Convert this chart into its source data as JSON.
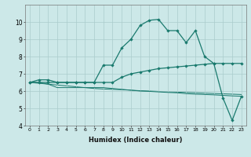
{
  "xlabel": "Humidex (Indice chaleur)",
  "x_values": [
    0,
    1,
    2,
    3,
    4,
    5,
    6,
    7,
    8,
    9,
    10,
    11,
    12,
    13,
    14,
    15,
    16,
    17,
    18,
    19,
    20,
    21,
    22,
    23
  ],
  "line1": [
    6.5,
    6.65,
    6.65,
    6.5,
    6.5,
    6.5,
    6.5,
    6.5,
    7.5,
    7.5,
    8.5,
    9.0,
    9.8,
    10.1,
    10.15,
    9.5,
    9.5,
    8.8,
    9.5,
    8.0,
    7.6,
    5.6,
    4.3,
    5.7
  ],
  "line2": [
    6.5,
    6.5,
    6.5,
    6.5,
    6.5,
    6.5,
    6.5,
    6.5,
    6.5,
    6.5,
    6.8,
    7.0,
    7.1,
    7.2,
    7.3,
    7.35,
    7.4,
    7.45,
    7.5,
    7.55,
    7.6,
    7.6,
    7.6,
    7.6
  ],
  "line3": [
    6.5,
    6.5,
    6.4,
    6.2,
    6.2,
    6.2,
    6.2,
    6.2,
    6.2,
    6.15,
    6.1,
    6.05,
    6.0,
    5.98,
    5.95,
    5.92,
    5.9,
    5.85,
    5.82,
    5.8,
    5.78,
    5.75,
    5.72,
    5.7
  ],
  "line4": [
    6.5,
    6.45,
    6.4,
    6.35,
    6.3,
    6.25,
    6.2,
    6.15,
    6.12,
    6.1,
    6.08,
    6.05,
    6.02,
    6.0,
    5.98,
    5.96,
    5.94,
    5.92,
    5.9,
    5.88,
    5.86,
    5.84,
    5.82,
    5.8
  ],
  "line_color": "#1a7a6e",
  "bg_color": "#cce8e8",
  "grid_color": "#aacccc",
  "ylim": [
    4,
    11
  ],
  "xlim": [
    -0.5,
    23.5
  ]
}
